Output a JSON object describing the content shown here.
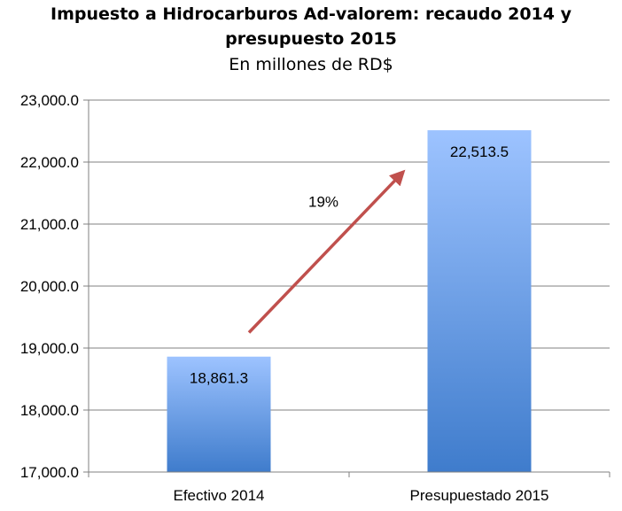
{
  "chart_data": {
    "type": "bar",
    "title": "Impuesto a Hidrocarburos Ad-valorem: recaudo 2014 y",
    "title_line2": "presupuesto 2015",
    "subtitle": "En millones de RD$",
    "categories": [
      "Efectivo 2014",
      "Presupuestado 2015"
    ],
    "values": [
      18861.3,
      22513.5
    ],
    "value_labels": [
      "18,861.3",
      "22,513.5"
    ],
    "ylim": [
      17000,
      23000
    ],
    "yticks": [
      17000,
      18000,
      19000,
      20000,
      21000,
      22000,
      23000
    ],
    "ytick_labels": [
      "17,000.0",
      "18,000.0",
      "19,000.0",
      "20,000.0",
      "21,000.0",
      "22,000.0",
      "23,000.0"
    ],
    "xlabel": "",
    "ylabel": "",
    "grid": true,
    "legend": "none",
    "annotation": {
      "text": "19%",
      "arrow": "from Efectivo 2014 to Presupuestado 2015"
    },
    "colors": {
      "bar_top": "#9dc3ff",
      "bar_bottom": "#3f7ccc",
      "arrow": "#c0504d",
      "grid": "#808080"
    }
  }
}
